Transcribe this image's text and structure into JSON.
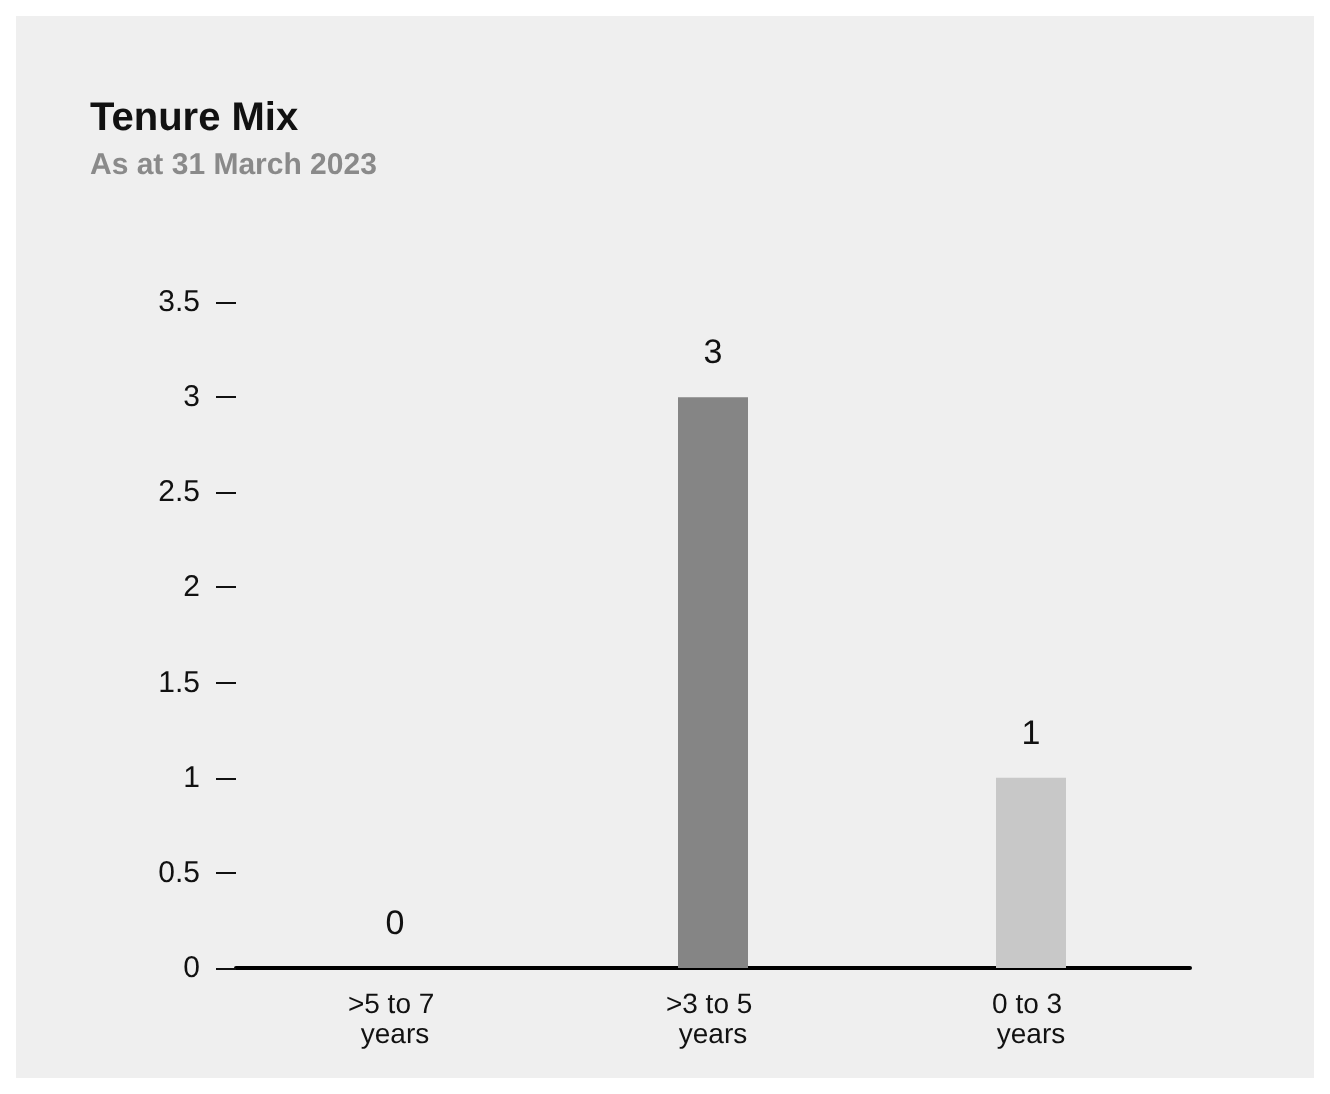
{
  "chart_data": {
    "type": "bar",
    "title": "Tenure Mix",
    "subtitle": "As at 31 March 2023",
    "categories": [
      ">5 to 7 years",
      ">3 to 5 years",
      "0 to 3 years"
    ],
    "values": [
      0,
      3,
      1
    ],
    "colors": [
      "#5a5a5a",
      "#858585",
      "#c8c8c8"
    ],
    "ylim": [
      0,
      3.5
    ],
    "yticks": [
      0,
      0.5,
      1,
      1.5,
      2,
      2.5,
      3,
      3.5
    ],
    "grid": false,
    "data_labels": true
  }
}
